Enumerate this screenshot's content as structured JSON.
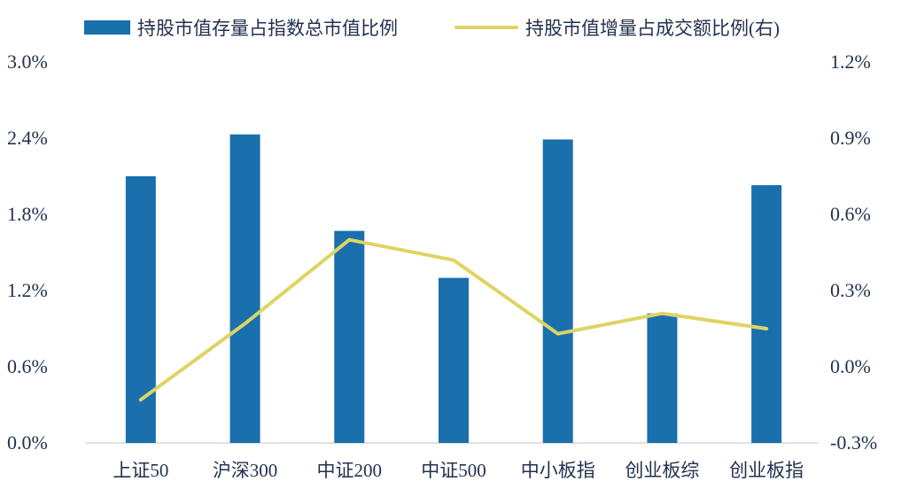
{
  "colors": {
    "bar": "#1a6fad",
    "line": "#ded463",
    "text": "#22324e",
    "axis_line": "#d9d9d9",
    "background": "#ffffff"
  },
  "legend": {
    "bar_label": "持股市值存量占指数总市值比例",
    "line_label": "持股市值增量占成交额比例(右)"
  },
  "chart_data": {
    "type": "bar",
    "subtype": "bar+line-dual-axis",
    "title": "",
    "xlabel": "",
    "ylabel_left": "",
    "ylabel_right": "",
    "grid": false,
    "legend_position": "top",
    "categories": [
      "上证50",
      "沪深300",
      "中证200",
      "中证500",
      "中小板指",
      "创业板综",
      "创业板指"
    ],
    "series": [
      {
        "name": "持股市值存量占指数总市值比例",
        "type": "bar",
        "axis": "left",
        "color": "#1a6fad",
        "values": [
          2.1,
          2.43,
          1.67,
          1.3,
          2.39,
          1.02,
          2.03
        ]
      },
      {
        "name": "持股市值增量占成交额比例(右)",
        "type": "line",
        "axis": "right",
        "color": "#ded463",
        "values": [
          -0.13,
          0.17,
          0.5,
          0.42,
          0.13,
          0.21,
          0.15
        ]
      }
    ],
    "left_axis": {
      "min": 0.0,
      "max": 3.0,
      "ticks": [
        "0.0%",
        "0.6%",
        "1.2%",
        "1.8%",
        "2.4%",
        "3.0%"
      ]
    },
    "right_axis": {
      "min": -0.3,
      "max": 1.2,
      "ticks": [
        "-0.3%",
        "0.0%",
        "0.3%",
        "0.6%",
        "0.9%",
        "1.2%"
      ]
    }
  }
}
